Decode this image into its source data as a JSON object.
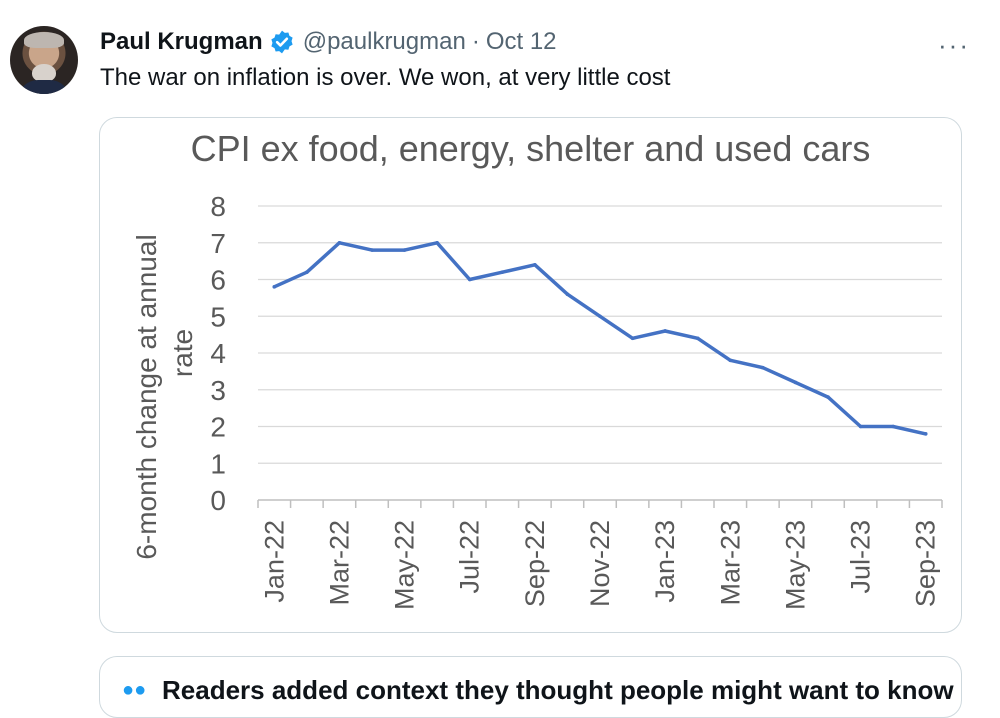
{
  "tweet": {
    "author_name": "Paul Krugman",
    "handle": "@paulkrugman",
    "separator": "·",
    "date": "Oct 12",
    "more_label": "···",
    "text": "The war on inflation is over. We won, at very little cost",
    "colors": {
      "text": "#0f1419",
      "muted": "#536471",
      "verified": "#1d9bf0",
      "border": "#cfd9de"
    }
  },
  "community_note": {
    "icon": "people-icon",
    "title": "Readers added context they thought people might want to know"
  },
  "chart_data": {
    "type": "line",
    "title": "CPI ex food, energy, shelter and used cars",
    "ylabel": [
      "6-month change at annual",
      "rate"
    ],
    "ylim": [
      0,
      8
    ],
    "yticks": [
      0,
      1,
      2,
      3,
      4,
      5,
      6,
      7,
      8
    ],
    "grid": true,
    "line_color": "#4472c4",
    "x": [
      "Jan-22",
      "Feb-22",
      "Mar-22",
      "Apr-22",
      "May-22",
      "Jun-22",
      "Jul-22",
      "Aug-22",
      "Sep-22",
      "Oct-22",
      "Nov-22",
      "Dec-22",
      "Jan-23",
      "Feb-23",
      "Mar-23",
      "Apr-23",
      "May-23",
      "Jun-23",
      "Jul-23",
      "Aug-23",
      "Sep-23"
    ],
    "xtick_labels": [
      "Jan-22",
      "Mar-22",
      "May-22",
      "Jul-22",
      "Sep-22",
      "Nov-22",
      "Jan-23",
      "Mar-23",
      "May-23",
      "Jul-23",
      "Sep-23"
    ],
    "values": [
      5.8,
      6.2,
      7.0,
      6.8,
      6.8,
      7.0,
      6.0,
      6.2,
      6.4,
      5.6,
      5.0,
      4.4,
      4.6,
      4.4,
      3.8,
      3.6,
      3.2,
      2.8,
      2.0,
      2.0,
      1.8
    ]
  }
}
